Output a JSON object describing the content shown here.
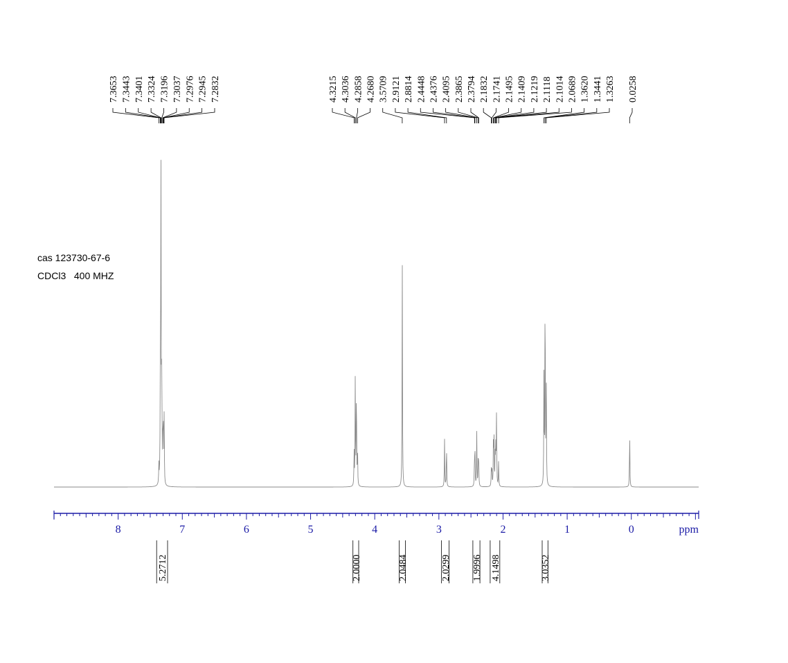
{
  "sample": {
    "id_label": "cas 123730-67-6",
    "solvent_freq": "CDCl3   400 MHZ"
  },
  "chart_data": {
    "type": "line",
    "title": "",
    "xlabel": "ppm",
    "ylabel": "",
    "xlim": [
      9.0,
      -1.05
    ],
    "x_reversed": true,
    "grid": false,
    "axis_color": "#1a1aa6",
    "trace_color": "#8a8a8a",
    "x_ticks": [
      {
        "value": 8,
        "label": "8"
      },
      {
        "value": 7,
        "label": "7"
      },
      {
        "value": 6,
        "label": "6"
      },
      {
        "value": 5,
        "label": "5"
      },
      {
        "value": 4,
        "label": "4"
      },
      {
        "value": 3,
        "label": "3"
      },
      {
        "value": 2,
        "label": "2"
      },
      {
        "value": 1,
        "label": "1"
      },
      {
        "value": 0,
        "label": "0"
      }
    ],
    "peak_labels": [
      {
        "group": "aromatic",
        "values": [
          "7.3653",
          "7.3443",
          "7.3401",
          "7.3324",
          "7.3196",
          "7.3037",
          "7.2976",
          "7.2945",
          "7.2832"
        ]
      },
      {
        "group": "aliphatic",
        "values": [
          "4.3215",
          "4.3036",
          "4.2858",
          "4.2680",
          "3.5709",
          "2.9121",
          "2.8814",
          "2.4448",
          "2.4376",
          "2.4095",
          "2.3865",
          "2.3794",
          "2.1832",
          "2.1741",
          "2.1495",
          "2.1409",
          "2.1219",
          "2.1118",
          "2.1014",
          "2.0689",
          "1.3620",
          "1.3441",
          "1.3263"
        ]
      },
      {
        "group": "tms",
        "values": [
          "0.0258"
        ]
      }
    ],
    "peaks": [
      {
        "ppm": 7.3653,
        "height": 0.06
      },
      {
        "ppm": 7.3443,
        "height": 0.14
      },
      {
        "ppm": 7.3401,
        "height": 0.3
      },
      {
        "ppm": 7.3324,
        "height": 1.0
      },
      {
        "ppm": 7.3196,
        "height": 0.36
      },
      {
        "ppm": 7.3037,
        "height": 0.12
      },
      {
        "ppm": 7.2976,
        "height": 0.1
      },
      {
        "ppm": 7.2945,
        "height": 0.1
      },
      {
        "ppm": 7.2832,
        "height": 0.21
      },
      {
        "ppm": 4.3215,
        "height": 0.11
      },
      {
        "ppm": 4.3036,
        "height": 0.34
      },
      {
        "ppm": 4.2858,
        "height": 0.34
      },
      {
        "ppm": 4.268,
        "height": 0.11
      },
      {
        "ppm": 3.5709,
        "height": 0.72
      },
      {
        "ppm": 2.9121,
        "height": 0.15
      },
      {
        "ppm": 2.8814,
        "height": 0.14
      },
      {
        "ppm": 2.4448,
        "height": 0.09
      },
      {
        "ppm": 2.4376,
        "height": 0.1
      },
      {
        "ppm": 2.4095,
        "height": 0.17
      },
      {
        "ppm": 2.3865,
        "height": 0.09
      },
      {
        "ppm": 2.3794,
        "height": 0.08
      },
      {
        "ppm": 2.1832,
        "height": 0.05
      },
      {
        "ppm": 2.1741,
        "height": 0.06
      },
      {
        "ppm": 2.1495,
        "height": 0.14
      },
      {
        "ppm": 2.1409,
        "height": 0.15
      },
      {
        "ppm": 2.1219,
        "height": 0.12
      },
      {
        "ppm": 2.1118,
        "height": 0.12
      },
      {
        "ppm": 2.1014,
        "height": 0.22
      },
      {
        "ppm": 2.0689,
        "height": 0.08
      },
      {
        "ppm": 1.362,
        "height": 0.35
      },
      {
        "ppm": 1.3441,
        "height": 0.7
      },
      {
        "ppm": 1.3263,
        "height": 0.35
      },
      {
        "ppm": 0.0258,
        "height": 0.18
      }
    ],
    "integrals": [
      {
        "from": 7.4,
        "to": 7.23,
        "value": "5.2712"
      },
      {
        "from": 4.34,
        "to": 4.25,
        "value": "2.0000"
      },
      {
        "from": 3.62,
        "to": 3.52,
        "value": "2.0484"
      },
      {
        "from": 2.96,
        "to": 2.84,
        "value": "2.0299"
      },
      {
        "from": 2.47,
        "to": 2.36,
        "value": "1.9996"
      },
      {
        "from": 2.2,
        "to": 2.05,
        "value": "4.1498"
      },
      {
        "from": 1.39,
        "to": 1.3,
        "value": "3.0352"
      }
    ]
  }
}
